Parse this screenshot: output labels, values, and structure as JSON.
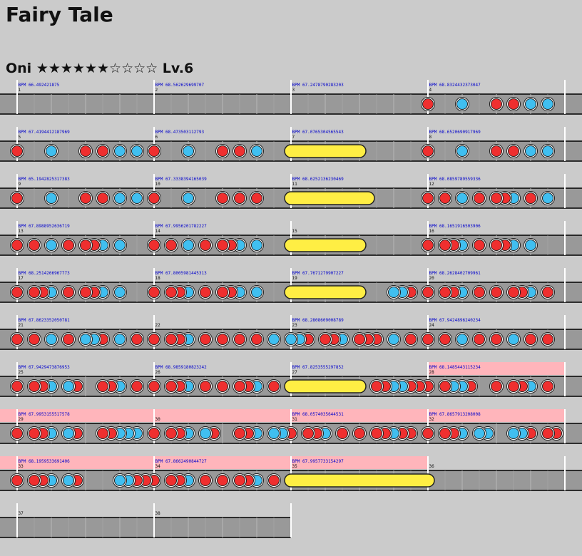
{
  "song": {
    "title": "Fairy Tale"
  },
  "difficulty": {
    "course": "Oni",
    "stars_filled": "★★★★★★",
    "stars_empty": "☆☆☆☆",
    "level": "Lv.6"
  },
  "colors": {
    "don": "#ef2f2f",
    "ka": "#40bff0",
    "roll": "#ffee44",
    "gogo": "#ffb5bb",
    "lane": "#999999",
    "bg": "#cbcbcb"
  },
  "rows": [
    {
      "measures": [
        {
          "n": "1",
          "bpm": "BPM 66.492421875"
        },
        {
          "n": "2",
          "bpm": "BPM 68.562629699707"
        },
        {
          "n": "3",
          "bpm": "BPM 67.2478790283203"
        },
        {
          "n": "4",
          "bpm": "BPM 68.8324432373047"
        }
      ],
      "gogo": [],
      "rolls": [],
      "notes": [
        [
          3,
          0,
          "d"
        ],
        [
          3,
          4,
          "k"
        ],
        [
          3,
          8,
          "d"
        ],
        [
          3,
          10,
          "d"
        ],
        [
          3,
          12,
          "k"
        ],
        [
          3,
          14,
          "k"
        ]
      ]
    },
    {
      "measures": [
        {
          "n": "5",
          "bpm": "BPM 67.4194412187969"
        },
        {
          "n": "6",
          "bpm": "BPM 68.473503112793"
        },
        {
          "n": "7",
          "bpm": "BPM 67.0765304565543"
        },
        {
          "n": "8",
          "bpm": "BPM 68.6520690917969"
        }
      ],
      "gogo": [],
      "rolls": [
        [
          2,
          0,
          2,
          8
        ]
      ],
      "notes": [
        [
          0,
          0,
          "d"
        ],
        [
          0,
          4,
          "k"
        ],
        [
          0,
          8,
          "d"
        ],
        [
          0,
          10,
          "d"
        ],
        [
          0,
          12,
          "k"
        ],
        [
          0,
          14,
          "k"
        ],
        [
          1,
          0,
          "d"
        ],
        [
          1,
          4,
          "k"
        ],
        [
          1,
          8,
          "d"
        ],
        [
          1,
          10,
          "d"
        ],
        [
          1,
          12,
          "k"
        ],
        [
          3,
          0,
          "d"
        ],
        [
          3,
          4,
          "k"
        ],
        [
          3,
          8,
          "d"
        ],
        [
          3,
          10,
          "d"
        ],
        [
          3,
          12,
          "k"
        ],
        [
          3,
          14,
          "k"
        ]
      ]
    },
    {
      "measures": [
        {
          "n": "9",
          "bpm": "BPM 65.1942825317383"
        },
        {
          "n": "10",
          "bpm": "BPM 67.3338394165039"
        },
        {
          "n": "11",
          "bpm": "BPM 68.6252136230469"
        },
        {
          "n": "12",
          "bpm": "BPM 68.0859789559336"
        }
      ],
      "gogo": [],
      "rolls": [
        [
          2,
          0,
          2,
          9
        ]
      ],
      "notes": [
        [
          0,
          0,
          "d"
        ],
        [
          0,
          4,
          "k"
        ],
        [
          0,
          8,
          "d"
        ],
        [
          0,
          10,
          "d"
        ],
        [
          0,
          12,
          "k"
        ],
        [
          0,
          14,
          "k"
        ],
        [
          1,
          0,
          "d"
        ],
        [
          1,
          4,
          "k"
        ],
        [
          1,
          8,
          "d"
        ],
        [
          1,
          10,
          "d"
        ],
        [
          1,
          12,
          "d"
        ],
        [
          3,
          0,
          "d"
        ],
        [
          3,
          2,
          "d"
        ],
        [
          3,
          4,
          "k"
        ],
        [
          3,
          6,
          "d"
        ],
        [
          3,
          8,
          "d"
        ],
        [
          3,
          9,
          "d"
        ],
        [
          3,
          10,
          "k"
        ],
        [
          3,
          12,
          "d"
        ],
        [
          3,
          14,
          "k"
        ]
      ]
    },
    {
      "measures": [
        {
          "n": "13",
          "bpm": "BPM 67.8988952636719"
        },
        {
          "n": "14",
          "bpm": "BPM 67.9956201782227"
        },
        {
          "n": "15",
          "bpm": ""
        },
        {
          "n": "16",
          "bpm": "BPM 68.1651916503906"
        }
      ],
      "gogo": [],
      "rolls": [
        [
          2,
          0,
          2,
          8
        ]
      ],
      "notes": [
        [
          0,
          0,
          "d"
        ],
        [
          0,
          2,
          "d"
        ],
        [
          0,
          4,
          "k"
        ],
        [
          0,
          6,
          "d"
        ],
        [
          0,
          8,
          "d"
        ],
        [
          0,
          9,
          "d"
        ],
        [
          0,
          10,
          "k"
        ],
        [
          0,
          12,
          "k"
        ],
        [
          1,
          0,
          "d"
        ],
        [
          1,
          2,
          "d"
        ],
        [
          1,
          4,
          "k"
        ],
        [
          1,
          6,
          "d"
        ],
        [
          1,
          8,
          "d"
        ],
        [
          1,
          9,
          "d"
        ],
        [
          1,
          10,
          "k"
        ],
        [
          1,
          12,
          "k"
        ],
        [
          3,
          0,
          "d"
        ],
        [
          3,
          2,
          "d"
        ],
        [
          3,
          3,
          "d"
        ],
        [
          3,
          4,
          "k"
        ],
        [
          3,
          6,
          "d"
        ],
        [
          3,
          8,
          "d"
        ],
        [
          3,
          9,
          "d"
        ],
        [
          3,
          10,
          "k"
        ],
        [
          3,
          12,
          "k"
        ]
      ]
    },
    {
      "measures": [
        {
          "n": "17",
          "bpm": "BPM 68.2514266967773"
        },
        {
          "n": "18",
          "bpm": "BPM 67.8005981445313"
        },
        {
          "n": "19",
          "bpm": "BPM 67.7671279907227"
        },
        {
          "n": "20",
          "bpm": "BPM 68.2628402709961"
        }
      ],
      "gogo": [],
      "rolls": [
        [
          2,
          0,
          2,
          8
        ]
      ],
      "notes": [
        [
          0,
          0,
          "d"
        ],
        [
          0,
          2,
          "d"
        ],
        [
          0,
          3,
          "d"
        ],
        [
          0,
          4,
          "k"
        ],
        [
          0,
          6,
          "d"
        ],
        [
          0,
          8,
          "d"
        ],
        [
          0,
          9,
          "d"
        ],
        [
          0,
          10,
          "k"
        ],
        [
          0,
          12,
          "k"
        ],
        [
          1,
          0,
          "d"
        ],
        [
          1,
          2,
          "d"
        ],
        [
          1,
          3,
          "d"
        ],
        [
          1,
          4,
          "k"
        ],
        [
          1,
          6,
          "d"
        ],
        [
          1,
          8,
          "d"
        ],
        [
          1,
          9,
          "d"
        ],
        [
          1,
          10,
          "k"
        ],
        [
          1,
          12,
          "k"
        ],
        [
          2,
          12,
          "k"
        ],
        [
          2,
          13,
          "k"
        ],
        [
          2,
          14,
          "d"
        ],
        [
          3,
          0,
          "d"
        ],
        [
          3,
          2,
          "d"
        ],
        [
          3,
          3,
          "d"
        ],
        [
          3,
          4,
          "k"
        ],
        [
          3,
          6,
          "d"
        ],
        [
          3,
          8,
          "d"
        ],
        [
          3,
          10,
          "d"
        ],
        [
          3,
          11,
          "d"
        ],
        [
          3,
          12,
          "k"
        ],
        [
          3,
          14,
          "d"
        ]
      ]
    },
    {
      "measures": [
        {
          "n": "21",
          "bpm": "BPM 67.8623352050781"
        },
        {
          "n": "22",
          "bpm": ""
        },
        {
          "n": "23",
          "bpm": "BPM 68.2808609008789"
        },
        {
          "n": "24",
          "bpm": "BPM 67.9424896240234"
        }
      ],
      "gogo": [],
      "rolls": [],
      "notes": [
        [
          0,
          0,
          "d"
        ],
        [
          0,
          2,
          "d"
        ],
        [
          0,
          4,
          "k"
        ],
        [
          0,
          6,
          "d"
        ],
        [
          0,
          8,
          "k"
        ],
        [
          0,
          9,
          "k"
        ],
        [
          0,
          10,
          "d"
        ],
        [
          0,
          12,
          "k"
        ],
        [
          0,
          14,
          "d"
        ],
        [
          1,
          0,
          "d"
        ],
        [
          1,
          2,
          "d"
        ],
        [
          1,
          3,
          "d"
        ],
        [
          1,
          4,
          "k"
        ],
        [
          1,
          6,
          "d"
        ],
        [
          1,
          8,
          "d"
        ],
        [
          1,
          10,
          "d"
        ],
        [
          1,
          12,
          "d"
        ],
        [
          1,
          14,
          "k"
        ],
        [
          2,
          0,
          "k"
        ],
        [
          2,
          1,
          "k"
        ],
        [
          2,
          2,
          "d"
        ],
        [
          2,
          4,
          "d"
        ],
        [
          2,
          5,
          "d"
        ],
        [
          2,
          6,
          "k"
        ],
        [
          2,
          8,
          "d"
        ],
        [
          2,
          9,
          "d"
        ],
        [
          2,
          10,
          "d"
        ],
        [
          2,
          12,
          "k"
        ],
        [
          2,
          14,
          "d"
        ],
        [
          3,
          0,
          "d"
        ],
        [
          3,
          2,
          "d"
        ],
        [
          3,
          4,
          "k"
        ],
        [
          3,
          6,
          "d"
        ],
        [
          3,
          8,
          "d"
        ],
        [
          3,
          10,
          "k"
        ],
        [
          3,
          12,
          "d"
        ],
        [
          3,
          14,
          "d"
        ]
      ]
    },
    {
      "measures": [
        {
          "n": "25",
          "bpm": "BPM 67.9429473876953"
        },
        {
          "n": "26",
          "bpm": "BPM 68.9859180823242"
        },
        {
          "n": "27",
          "bpm": "BPM 67.8253555297852"
        },
        {
          "n": "28",
          "bpm": "BPM 68.1485443115234"
        }
      ],
      "gogo": [
        [
          3,
          0,
          4,
          0
        ]
      ],
      "rolls": [
        [
          2,
          0,
          2,
          8
        ]
      ],
      "notes": [
        [
          0,
          0,
          "d"
        ],
        [
          0,
          2,
          "d"
        ],
        [
          0,
          3,
          "d"
        ],
        [
          0,
          4,
          "k"
        ],
        [
          0,
          6,
          "k"
        ],
        [
          0,
          7,
          "d"
        ],
        [
          0,
          10,
          "d"
        ],
        [
          0,
          11,
          "d"
        ],
        [
          0,
          12,
          "k"
        ],
        [
          0,
          14,
          "d"
        ],
        [
          1,
          0,
          "d"
        ],
        [
          1,
          2,
          "d"
        ],
        [
          1,
          3,
          "d"
        ],
        [
          1,
          4,
          "k"
        ],
        [
          1,
          6,
          "d"
        ],
        [
          1,
          8,
          "d"
        ],
        [
          1,
          10,
          "d"
        ],
        [
          1,
          11,
          "d"
        ],
        [
          1,
          12,
          "k"
        ],
        [
          1,
          14,
          "d"
        ],
        [
          2,
          10,
          "d"
        ],
        [
          2,
          11,
          "d"
        ],
        [
          2,
          12,
          "k"
        ],
        [
          2,
          13,
          "k"
        ],
        [
          2,
          14,
          "d"
        ],
        [
          2,
          15,
          "d"
        ],
        [
          3,
          0,
          "d"
        ],
        [
          3,
          2,
          "d"
        ],
        [
          3,
          3,
          "k"
        ],
        [
          3,
          4,
          "k"
        ],
        [
          3,
          5,
          "d"
        ],
        [
          3,
          8,
          "d"
        ],
        [
          3,
          10,
          "d"
        ],
        [
          3,
          11,
          "d"
        ],
        [
          3,
          12,
          "k"
        ],
        [
          3,
          14,
          "d"
        ]
      ]
    },
    {
      "measures": [
        {
          "n": "29",
          "bpm": "BPM 67.9953155517578"
        },
        {
          "n": "30",
          "bpm": ""
        },
        {
          "n": "31",
          "bpm": "BPM 68.0574035644531"
        },
        {
          "n": "32",
          "bpm": "BPM 67.8657913208008"
        }
      ],
      "gogo": [
        [
          0,
          0,
          4,
          0
        ]
      ],
      "rolls": [],
      "notes": [
        [
          0,
          0,
          "d"
        ],
        [
          0,
          2,
          "d"
        ],
        [
          0,
          3,
          "d"
        ],
        [
          0,
          4,
          "k"
        ],
        [
          0,
          6,
          "k"
        ],
        [
          0,
          7,
          "d"
        ],
        [
          0,
          10,
          "d"
        ],
        [
          0,
          11,
          "d"
        ],
        [
          0,
          12,
          "k"
        ],
        [
          0,
          13,
          "k"
        ],
        [
          0,
          14,
          "k"
        ],
        [
          1,
          0,
          "d"
        ],
        [
          1,
          2,
          "d"
        ],
        [
          1,
          3,
          "d"
        ],
        [
          1,
          4,
          "k"
        ],
        [
          1,
          6,
          "k"
        ],
        [
          1,
          7,
          "d"
        ],
        [
          1,
          10,
          "d"
        ],
        [
          1,
          11,
          "d"
        ],
        [
          1,
          12,
          "k"
        ],
        [
          1,
          14,
          "k"
        ],
        [
          1,
          15,
          "k"
        ],
        [
          2,
          0,
          "d"
        ],
        [
          2,
          2,
          "d"
        ],
        [
          2,
          3,
          "d"
        ],
        [
          2,
          4,
          "k"
        ],
        [
          2,
          6,
          "d"
        ],
        [
          2,
          8,
          "d"
        ],
        [
          2,
          10,
          "d"
        ],
        [
          2,
          11,
          "d"
        ],
        [
          2,
          12,
          "k"
        ],
        [
          2,
          13,
          "d"
        ],
        [
          2,
          14,
          "d"
        ],
        [
          3,
          0,
          "d"
        ],
        [
          3,
          2,
          "d"
        ],
        [
          3,
          3,
          "d"
        ],
        [
          3,
          4,
          "k"
        ],
        [
          3,
          6,
          "k"
        ],
        [
          3,
          7,
          "k"
        ],
        [
          3,
          10,
          "k"
        ],
        [
          3,
          11,
          "k"
        ],
        [
          3,
          12,
          "d"
        ],
        [
          3,
          14,
          "d"
        ],
        [
          3,
          15,
          "d"
        ]
      ]
    },
    {
      "measures": [
        {
          "n": "33",
          "bpm": "BPM 68.1959533691406"
        },
        {
          "n": "34",
          "bpm": "BPM 67.8662490844727"
        },
        {
          "n": "35",
          "bpm": "BPM 67.9957733154297"
        },
        {
          "n": "36",
          "bpm": ""
        }
      ],
      "gogo": [
        [
          0,
          0,
          3,
          0
        ]
      ],
      "rolls": [
        [
          2,
          0,
          2,
          16
        ]
      ],
      "notes": [
        [
          0,
          0,
          "d"
        ],
        [
          0,
          2,
          "d"
        ],
        [
          0,
          3,
          "d"
        ],
        [
          0,
          4,
          "k"
        ],
        [
          0,
          6,
          "k"
        ],
        [
          0,
          7,
          "d"
        ],
        [
          0,
          12,
          "k"
        ],
        [
          0,
          13,
          "k"
        ],
        [
          0,
          14,
          "d"
        ],
        [
          0,
          15,
          "d"
        ],
        [
          1,
          0,
          "d"
        ],
        [
          1,
          2,
          "d"
        ],
        [
          1,
          3,
          "d"
        ],
        [
          1,
          4,
          "k"
        ],
        [
          1,
          6,
          "d"
        ],
        [
          1,
          8,
          "d"
        ],
        [
          1,
          10,
          "d"
        ],
        [
          1,
          11,
          "d"
        ],
        [
          1,
          12,
          "k"
        ],
        [
          1,
          14,
          "d"
        ]
      ]
    },
    {
      "measures": [
        {
          "n": "37",
          "bpm": ""
        },
        {
          "n": "38",
          "bpm": ""
        }
      ],
      "gogo": [],
      "rolls": [],
      "notes": []
    }
  ]
}
